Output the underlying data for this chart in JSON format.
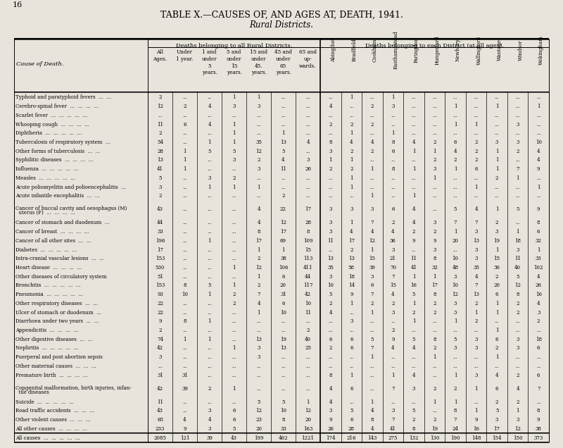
{
  "title": "TABLE X.—CAUSES OF, AND AGES AT, DEATH, 1941.",
  "subtitle": "Rural Districts.",
  "page_num": "16",
  "bg_color": "#e8e4dc",
  "col_headers_group1": "Deaths belonging to all Rural Districts.",
  "col_headers_group2": "Deaths belonging to each District (at all ages).",
  "col_headers_ages": [
    "All\nAges.",
    "Under\n1 year.",
    "1 and\nunder\n5\nyears.",
    "5 and\nunder\n15\nyears.",
    "15 and\nunder\n45.\nyears.",
    "45 and\nunder\n65\nyears.",
    "65 and\nup-\nwards."
  ],
  "col_headers_districts": [
    "Abingdon",
    "Bradfield",
    "Cookham",
    "Easthampstead",
    "Faringdon",
    "Hungerford",
    "Newbury",
    "Wallingford",
    "Wantage",
    "Windsor",
    "Wokingham"
  ],
  "cause_label": "Cause of Death.",
  "causes": [
    "Typhoid and paratyphoid fevers  ...  ...",
    "Cerebro-spinal fever  ...  ...  ...  ...",
    "Scarlet fever  ...  ...  ...  ...  ...",
    "Whooping cough  ...  ...  ...  ...",
    "Diphtheria  ...  ...  ...  ...  ...",
    "Tuberculosis of respiratory system  ...",
    "Other forms of tuberculosis  ...  ...",
    "Syphilitic diseases  ...  ...  ...  ...",
    "Influenza  ...  ...  ...  ...  ...",
    "Measles  ...  ...  ...  ...  ...",
    "Acute poliomyelitis and polioencephalitis  ...",
    "Acute infantile encephalitis  ...  ...",
    "Cancer of buccal cavity and oesophagus (M)\n  uterus (F)  ...  ...  ...  ...",
    "Cancer of stomach and duodenum  ...",
    "Cancer of breast  ...  ...  ...  ...",
    "Cancer of all other sites  ...  ...",
    "Diabetes  ...  ...  ...  ...  ...",
    "Intra-cranial vascular lesions  ...  ...",
    "Heart disease  ...  ...  ...  ...",
    "Other diseases of circulatory system",
    "Bronchitis  ...  ...  ...  ...  ...",
    "Pneumonia  ...  ...  ...  ...  ...",
    "Other respiratory diseases  ...  ...",
    "Ulcer of stomach or duodenum  ...",
    "Diarrhoea under two years  ...  ...",
    "Appendicitis  ...  ...  ...  ...",
    "Other digestive diseases  ...  ...",
    "Nephritis  ...  ...  ...  ...  ...",
    "Puerperal and post abortion sepsis",
    "Other maternal causes  ...  ...  ...",
    "Premature birth  ...  ...  ...  ...",
    "Congenital malformation, birth injuries, infan-\n  tile diseases",
    "Suicide  ...  ...  ...  ...  ...",
    "Road traffic accidents  ...  ...  ...",
    "Other violent causes  ...  ...  ...",
    "All other causes  ...  ...  ...  ...",
    "All causes  ...  ...  ...  ...  ..."
  ],
  "data_allages": [
    [
      "2",
      "...",
      "...",
      "1",
      "1",
      "...",
      "..."
    ],
    [
      "12",
      "2",
      "4",
      "3",
      "3",
      "...",
      "..."
    ],
    [
      "...",
      "...",
      "...",
      "...",
      "...",
      "...",
      "..."
    ],
    [
      "11",
      "6",
      "4",
      "1",
      "...",
      "...",
      "..."
    ],
    [
      "2",
      "...",
      "...",
      "1",
      "...",
      "1",
      "..."
    ],
    [
      "54",
      "...",
      "1",
      "1",
      "35",
      "13",
      "4"
    ],
    [
      "28",
      "1",
      "5",
      "5",
      "12",
      "5",
      "..."
    ],
    [
      "13",
      "1",
      "...",
      "3",
      "2",
      "4",
      "3"
    ],
    [
      "41",
      "1",
      "...",
      "...",
      "3",
      "11",
      "26"
    ],
    [
      "5",
      "...",
      "3",
      "2",
      "...",
      "...",
      "..."
    ],
    [
      "3",
      "...",
      "1",
      "1",
      "1",
      "...",
      "..."
    ],
    [
      "2",
      "...",
      "...",
      "...",
      "...",
      "2",
      "..."
    ],
    [
      "43",
      "...",
      "...",
      "...",
      "4",
      "22",
      "17"
    ],
    [
      "44",
      "...",
      "...",
      "...",
      "4",
      "12",
      "28"
    ],
    [
      "33",
      "...",
      "...",
      "...",
      "8",
      "17",
      "8"
    ],
    [
      "196",
      "...",
      "1",
      "...",
      "17",
      "69",
      "109"
    ],
    [
      "17",
      "...",
      "...",
      "...",
      "1",
      "1",
      "15"
    ],
    [
      "153",
      "...",
      "...",
      "...",
      "2",
      "38",
      "113"
    ],
    [
      "530",
      "...",
      "...",
      "1",
      "12",
      "106",
      "411"
    ],
    [
      "51",
      "...",
      "...",
      "...",
      "1",
      "6",
      "44"
    ],
    [
      "153",
      "8",
      "5",
      "1",
      "2",
      "20",
      "117"
    ],
    [
      "93",
      "10",
      "1",
      "2",
      "7",
      "31",
      "42"
    ],
    [
      "22",
      "...",
      "...",
      "2",
      "4",
      "6",
      "10"
    ],
    [
      "22",
      "...",
      "...",
      "...",
      "1",
      "10",
      "11"
    ],
    [
      "9",
      "8",
      "1",
      "...",
      "...",
      "...",
      "..."
    ],
    [
      "2",
      "...",
      "...",
      "...",
      "...",
      "...",
      "2"
    ],
    [
      "74",
      "1",
      "1",
      "...",
      "13",
      "19",
      "40"
    ],
    [
      "42",
      "...",
      "...",
      "1",
      "3",
      "13",
      "25"
    ],
    [
      "3",
      "...",
      "...",
      "...",
      "3",
      "...",
      "..."
    ],
    [
      "...",
      "...",
      "...",
      "...",
      "...",
      "...",
      "..."
    ],
    [
      "31",
      "31",
      "...",
      "...",
      "...",
      "...",
      "..."
    ],
    [
      "42",
      "39",
      "2",
      "1",
      "...",
      "...",
      "..."
    ],
    [
      "11",
      "...",
      "...",
      "...",
      "5",
      "5",
      "1"
    ],
    [
      "43",
      "...",
      "3",
      "6",
      "12",
      "10",
      "12"
    ],
    [
      "65",
      "4",
      "4",
      "6",
      "23",
      "8",
      "20"
    ],
    [
      "233",
      "9",
      "3",
      "5",
      "20",
      "33",
      "163"
    ],
    [
      "2085",
      "121",
      "39",
      "43",
      "199",
      "462",
      "1221"
    ]
  ],
  "data_districts": [
    [
      "...",
      "1",
      "...",
      "1",
      "...",
      "...",
      "...",
      "...",
      "...",
      "...",
      "..."
    ],
    [
      "4",
      "...",
      "2",
      "3",
      "...",
      "...",
      "1",
      "...",
      "1",
      "...",
      "1"
    ],
    [
      "...",
      "...",
      "...",
      "...",
      "...",
      "...",
      "...",
      "...",
      "...",
      "...",
      "..."
    ],
    [
      "2",
      "2",
      "2",
      "...",
      "...",
      "...",
      "1",
      "1",
      "...",
      "3",
      "..."
    ],
    [
      "...",
      "1",
      "...",
      "1",
      "...",
      "...",
      "...",
      "...",
      "...",
      "...",
      "..."
    ],
    [
      "8",
      "4",
      "4",
      "8",
      "4",
      "2",
      "6",
      "2",
      "3",
      "3",
      "10"
    ],
    [
      "3",
      "2",
      "2",
      "6",
      "1",
      "1",
      "4",
      "2",
      "1",
      "2",
      "4"
    ],
    [
      "1",
      "1",
      "...",
      "...",
      "...",
      "2",
      "2",
      "2",
      "1",
      "...",
      "4"
    ],
    [
      "2",
      "2",
      "1",
      "8",
      "1",
      "3",
      "1",
      "6",
      "1",
      "7",
      "9"
    ],
    [
      "...",
      "1",
      "...",
      "...",
      "...",
      "1",
      "...",
      "...",
      "2",
      "1",
      "..."
    ],
    [
      "...",
      "1",
      "...",
      "...",
      "...",
      "...",
      "...",
      "1",
      "...",
      "...",
      "1"
    ],
    [
      "...",
      "...",
      "1",
      "...",
      "1",
      "...",
      "...",
      "...",
      "...",
      "...",
      "..."
    ],
    [
      "3",
      "3",
      "3",
      "6",
      "4",
      "...",
      "5",
      "4",
      "1",
      "5",
      "9"
    ],
    [
      "3",
      "1",
      "7",
      "2",
      "4",
      "3",
      "7",
      "7",
      "2",
      "...",
      "8"
    ],
    [
      "3",
      "4",
      "4",
      "4",
      "2",
      "2",
      "1",
      "3",
      "3",
      "1",
      "6"
    ],
    [
      "11",
      "17",
      "12",
      "36",
      "9",
      "9",
      "20",
      "13",
      "19",
      "18",
      "32"
    ],
    [
      "...",
      "2",
      "1",
      "3",
      "...",
      "3",
      "...",
      "3",
      "1",
      "3",
      "1"
    ],
    [
      "13",
      "13",
      "15",
      "21",
      "11",
      "8",
      "10",
      "3",
      "15",
      "11",
      "33"
    ],
    [
      "35",
      "58",
      "39",
      "70",
      "41",
      "32",
      "48",
      "35",
      "30",
      "40",
      "102"
    ],
    [
      "3",
      "18",
      "3",
      "7",
      "1",
      "1",
      "3",
      "4",
      "2",
      "5",
      "4"
    ],
    [
      "10",
      "14",
      "6",
      "15",
      "16",
      "17",
      "10",
      "7",
      "20",
      "12",
      "26"
    ],
    [
      "5",
      "9",
      "7",
      "4",
      "5",
      "8",
      "12",
      "13",
      "6",
      "8",
      "16"
    ],
    [
      "2",
      "1",
      "2",
      "2",
      "1",
      "2",
      "3",
      "2",
      "1",
      "2",
      "4"
    ],
    [
      "4",
      "...",
      "1",
      "3",
      "2",
      "2",
      "3",
      "1",
      "1",
      "2",
      "3"
    ],
    [
      "...",
      "3",
      "...",
      "...",
      "1",
      "...",
      "1",
      "2",
      "...",
      "...",
      "2"
    ],
    [
      "...",
      "...",
      "...",
      "2",
      "...",
      "...",
      "...",
      "...",
      "1",
      "...",
      "..."
    ],
    [
      "6",
      "6",
      "5",
      "9",
      "5",
      "8",
      "5",
      "3",
      "6",
      "3",
      "18"
    ],
    [
      "2",
      "6",
      "7",
      "4",
      "4",
      "2",
      "3",
      "3",
      "2",
      "3",
      "6"
    ],
    [
      "...",
      "...",
      "1",
      "...",
      "...",
      "1",
      "...",
      "...",
      "1",
      "...",
      "..."
    ],
    [
      "...",
      "...",
      "...",
      "...",
      "...",
      "...",
      "...",
      "...",
      "...",
      "...",
      "..."
    ],
    [
      "8",
      "1",
      "...",
      "1",
      "4",
      "...",
      "1",
      "3",
      "4",
      "2",
      "6"
    ],
    [
      "4",
      "6",
      "...",
      "7",
      "3",
      "2",
      "2",
      "1",
      "6",
      "4",
      "7"
    ],
    [
      "4",
      "...",
      "1",
      "...",
      "...",
      "1",
      "1",
      "...",
      "2",
      "2",
      "..."
    ],
    [
      "3",
      "5",
      "4",
      "3",
      "5",
      "...",
      "8",
      "1",
      "5",
      "1",
      "8"
    ],
    [
      "9",
      "6",
      "8",
      "7",
      "2",
      "2",
      "7",
      "9",
      "3",
      "3",
      "9"
    ],
    [
      "26",
      "28",
      "4",
      "41",
      "8",
      "19",
      "24",
      "16",
      "17",
      "12",
      "38"
    ],
    [
      "174",
      "216",
      "143",
      "275",
      "132",
      "130",
      "190",
      "148",
      "154",
      "150",
      "373"
    ]
  ]
}
